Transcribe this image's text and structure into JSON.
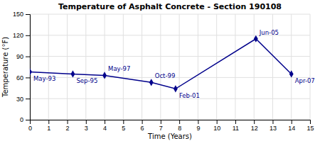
{
  "chart_data": {
    "type": "line",
    "title": "Temperature of Asphalt Concrete - Section 190108",
    "x_label": "Time (Years)",
    "y_label": "Temperature (°F)",
    "x": [
      0,
      2.3,
      4.0,
      6.5,
      7.8,
      12.1,
      14.0
    ],
    "values": [
      68,
      65,
      63,
      53,
      44,
      115,
      65
    ],
    "annotations": [
      "May-93",
      "Sep-95",
      "May-97",
      "Oct-99",
      "Feb-01",
      "Jun-05",
      "Apr-07"
    ],
    "xlim": [
      0,
      15
    ],
    "ylim": [
      0,
      150
    ],
    "xticks": [
      0,
      1,
      2,
      3,
      4,
      5,
      6,
      7,
      8,
      9,
      10,
      11,
      12,
      13,
      14,
      15
    ],
    "yticks": [
      0,
      30,
      60,
      90,
      120,
      150
    ],
    "color": "#00008B",
    "marker": "diamond",
    "grid": true
  }
}
